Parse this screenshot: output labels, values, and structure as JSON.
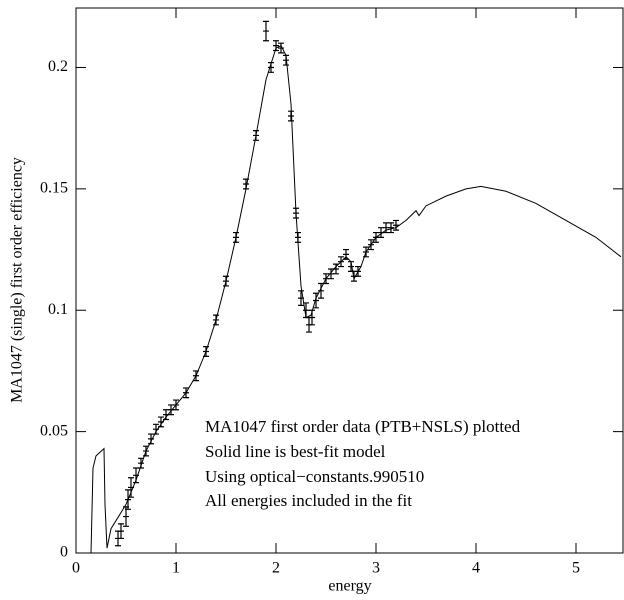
{
  "chart_data": {
    "type": "line",
    "xlabel": "energy",
    "ylabel": "MA1047 (single) first order efficiency",
    "annotations": [
      "MA1047 first order data (PTB+NSLS) plotted",
      "Solid line is best-fit model",
      "Using optical−constants.990510",
      "All energies included in the fit"
    ],
    "xlim": [
      0,
      5.47
    ],
    "ylim": [
      0,
      0.2245
    ],
    "xticks": [
      0,
      1,
      2,
      3,
      4,
      5
    ],
    "yticks": [
      0,
      0.05,
      0.1,
      0.15,
      0.2
    ],
    "series": [
      {
        "type": "line",
        "color": "#000000",
        "x": [
          0.15,
          0.17,
          0.2,
          0.28,
          0.29,
          0.31,
          0.35,
          0.5,
          0.6,
          0.7,
          0.8,
          0.9,
          1.0,
          1.1,
          1.2,
          1.3,
          1.4,
          1.5,
          1.6,
          1.7,
          1.8,
          1.9,
          2.0,
          2.05,
          2.1,
          2.15,
          2.2,
          2.25,
          2.3,
          2.35,
          2.4,
          2.5,
          2.6,
          2.7,
          2.75,
          2.78,
          2.85,
          2.9,
          3.0,
          3.1,
          3.2,
          3.3,
          3.4,
          3.43,
          3.5,
          3.7,
          3.9,
          4.05,
          4.3,
          4.6,
          4.9,
          5.2,
          5.45
        ],
        "values": [
          0.0,
          0.035,
          0.04,
          0.043,
          0.02,
          0.002,
          0.01,
          0.02,
          0.03,
          0.042,
          0.05,
          0.056,
          0.061,
          0.066,
          0.073,
          0.083,
          0.096,
          0.112,
          0.13,
          0.15,
          0.172,
          0.195,
          0.208,
          0.209,
          0.205,
          0.185,
          0.14,
          0.11,
          0.097,
          0.098,
          0.105,
          0.113,
          0.118,
          0.122,
          0.12,
          0.113,
          0.118,
          0.124,
          0.13,
          0.133,
          0.134,
          0.137,
          0.141,
          0.139,
          0.143,
          0.147,
          0.15,
          0.151,
          0.149,
          0.144,
          0.137,
          0.13,
          0.122
        ]
      },
      {
        "type": "errorbar",
        "color": "#000000",
        "x": [
          0.42,
          0.45,
          0.5,
          0.52,
          0.55,
          0.6,
          0.65,
          0.7,
          0.75,
          0.8,
          0.85,
          0.9,
          0.95,
          1.0,
          1.1,
          1.2,
          1.3,
          1.4,
          1.5,
          1.6,
          1.7,
          1.8,
          1.9,
          1.95,
          2.0,
          2.05,
          2.1,
          2.15,
          2.2,
          2.22,
          2.25,
          2.3,
          2.33,
          2.36,
          2.4,
          2.45,
          2.5,
          2.55,
          2.6,
          2.65,
          2.7,
          2.75,
          2.78,
          2.82,
          2.9,
          2.95,
          3.0,
          3.05,
          3.1,
          3.15,
          3.2
        ],
        "values": [
          0.006,
          0.009,
          0.015,
          0.022,
          0.027,
          0.032,
          0.037,
          0.042,
          0.047,
          0.051,
          0.054,
          0.057,
          0.059,
          0.061,
          0.066,
          0.073,
          0.083,
          0.096,
          0.112,
          0.13,
          0.152,
          0.172,
          0.215,
          0.2,
          0.209,
          0.208,
          0.203,
          0.18,
          0.14,
          0.13,
          0.105,
          0.1,
          0.094,
          0.097,
          0.104,
          0.108,
          0.113,
          0.115,
          0.117,
          0.12,
          0.123,
          0.118,
          0.114,
          0.116,
          0.124,
          0.127,
          0.13,
          0.132,
          0.134,
          0.134,
          0.135
        ],
        "errors": [
          0.003,
          0.003,
          0.004,
          0.004,
          0.004,
          0.003,
          0.002,
          0.002,
          0.002,
          0.002,
          0.002,
          0.002,
          0.002,
          0.002,
          0.002,
          0.002,
          0.002,
          0.002,
          0.002,
          0.002,
          0.002,
          0.002,
          0.004,
          0.002,
          0.002,
          0.002,
          0.002,
          0.002,
          0.002,
          0.002,
          0.003,
          0.003,
          0.003,
          0.003,
          0.003,
          0.003,
          0.002,
          0.002,
          0.002,
          0.002,
          0.002,
          0.002,
          0.002,
          0.002,
          0.002,
          0.002,
          0.002,
          0.002,
          0.002,
          0.002,
          0.002
        ]
      }
    ]
  }
}
